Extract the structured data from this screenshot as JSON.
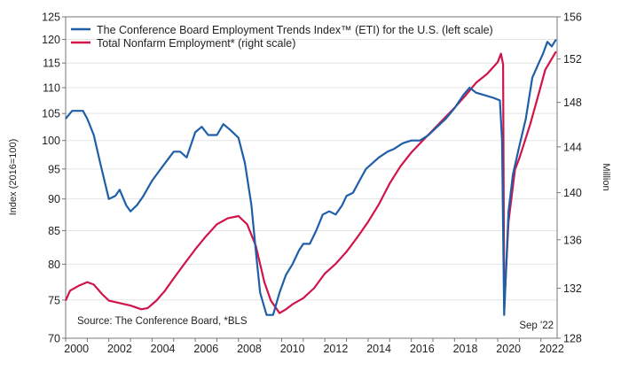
{
  "chart_data": {
    "type": "line",
    "title": "",
    "left_axis": {
      "label": "Index (2016=100)",
      "ticks": [
        70,
        75,
        80,
        85,
        90,
        95,
        100,
        105,
        110,
        115,
        120,
        125
      ],
      "range": [
        70,
        125
      ],
      "scale": "log"
    },
    "right_axis": {
      "label": "Million",
      "ticks": [
        128,
        132,
        136,
        140,
        144,
        148,
        152,
        156
      ],
      "range": [
        128,
        156
      ],
      "scale": "log"
    },
    "x_axis": {
      "ticks": [
        "2000",
        "2002",
        "2004",
        "2006",
        "2008",
        "2010",
        "2012",
        "2014",
        "2016",
        "2018",
        "2020",
        "2022"
      ],
      "range": [
        2000,
        2022.75
      ]
    },
    "grid": true,
    "legend_position": "top-left",
    "source_note": "Source: The Conference Board, *BLS",
    "date_note": "Sep '22",
    "series": [
      {
        "name": "The Conference Board Employment Trends Index™ (ETI) for the U.S. (left scale)",
        "axis": "left",
        "color": "#1f5fa8",
        "x": [
          2000.0,
          2000.3,
          2000.8,
          2001.0,
          2001.3,
          2001.6,
          2002.0,
          2002.3,
          2002.5,
          2002.8,
          2003.0,
          2003.3,
          2003.6,
          2004.0,
          2004.3,
          2004.6,
          2005.0,
          2005.3,
          2005.6,
          2006.0,
          2006.3,
          2006.6,
          2007.0,
          2007.3,
          2007.6,
          2008.0,
          2008.3,
          2008.6,
          2008.8,
          2009.0,
          2009.3,
          2009.6,
          2009.9,
          2010.2,
          2010.5,
          2010.8,
          2011.0,
          2011.3,
          2011.6,
          2011.9,
          2012.2,
          2012.5,
          2012.8,
          2013.0,
          2013.3,
          2013.6,
          2013.9,
          2014.2,
          2014.5,
          2014.9,
          2015.2,
          2015.6,
          2016.0,
          2016.4,
          2016.8,
          2017.2,
          2017.6,
          2018.0,
          2018.4,
          2018.7,
          2019.0,
          2019.4,
          2019.8,
          2020.1,
          2020.2,
          2020.3,
          2020.5,
          2020.7,
          2021.0,
          2021.3,
          2021.6,
          2021.9,
          2022.1,
          2022.3,
          2022.5,
          2022.7
        ],
        "values": [
          104,
          105.5,
          105.5,
          104,
          101,
          96,
          90,
          90.5,
          91.5,
          89,
          88,
          89,
          90.5,
          93,
          94.5,
          96,
          98,
          98,
          97,
          101.5,
          102.5,
          101,
          101,
          103,
          102,
          100.5,
          96,
          89,
          82,
          76,
          73,
          73,
          76,
          78.5,
          80,
          82,
          83,
          83,
          85,
          87.5,
          88,
          87.5,
          89,
          90.5,
          91,
          93,
          95,
          96,
          97,
          98,
          98.5,
          99.5,
          100,
          100,
          101,
          102.5,
          104,
          106,
          108.5,
          110,
          109,
          108.5,
          108,
          107.5,
          100,
          73,
          88,
          94,
          99,
          104,
          112,
          115,
          117,
          119.5,
          118.5,
          120
        ]
      },
      {
        "name": "Total Nonfarm Employment* (right scale)",
        "axis": "right",
        "color": "#d0144a",
        "x": [
          2000.0,
          2000.2,
          2000.6,
          2001.0,
          2001.3,
          2001.7,
          2002.0,
          2002.5,
          2003.0,
          2003.5,
          2003.8,
          2004.2,
          2004.6,
          2005.0,
          2005.5,
          2006.0,
          2006.5,
          2007.0,
          2007.5,
          2008.0,
          2008.4,
          2008.8,
          2009.2,
          2009.5,
          2009.9,
          2010.2,
          2010.5,
          2011.0,
          2011.5,
          2012.0,
          2012.5,
          2013.0,
          2013.5,
          2014.0,
          2014.5,
          2015.0,
          2015.5,
          2016.0,
          2016.5,
          2017.0,
          2017.5,
          2018.0,
          2018.5,
          2019.0,
          2019.5,
          2020.0,
          2020.15,
          2020.25,
          2020.3,
          2020.5,
          2020.8,
          2021.0,
          2021.5,
          2021.9,
          2022.2,
          2022.7
        ],
        "values": [
          131,
          131.8,
          132.2,
          132.5,
          132.3,
          131.5,
          131,
          130.8,
          130.6,
          130.3,
          130.4,
          131,
          131.8,
          132.8,
          134,
          135.2,
          136.3,
          137.3,
          137.8,
          138,
          137.3,
          135.5,
          132.5,
          131,
          130,
          130.3,
          130.7,
          131.2,
          132,
          133.2,
          134,
          135,
          136.2,
          137.5,
          139,
          140.8,
          142.3,
          143.5,
          144.5,
          145.5,
          146.5,
          147.5,
          148.6,
          149.8,
          150.6,
          151.7,
          152.5,
          151.5,
          130.4,
          137.5,
          142,
          143,
          146,
          148.8,
          151,
          152.7
        ]
      }
    ]
  }
}
